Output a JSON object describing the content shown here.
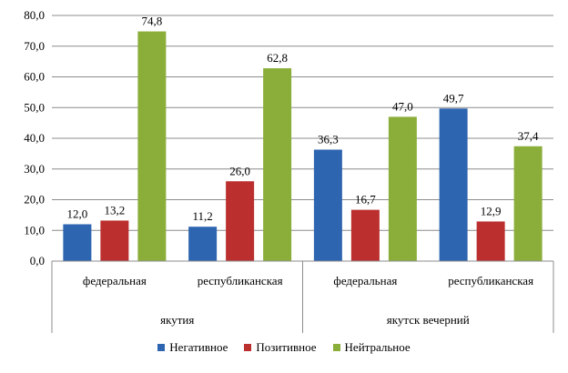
{
  "chart_data": {
    "type": "bar",
    "groups": [
      {
        "label": "якутия",
        "categories": [
          "федеральная",
          "республиканская"
        ]
      },
      {
        "label": "якутск вечерний",
        "categories": [
          "федеральная",
          "республиканская"
        ]
      }
    ],
    "categories": [
      "федеральная",
      "республиканская",
      "федеральная",
      "республиканская"
    ],
    "series": [
      {
        "name": "Негативное",
        "color": "#2e65b0",
        "values": [
          12.0,
          11.2,
          36.3,
          49.7
        ],
        "labels": [
          "12,0",
          "11,2",
          "36,3",
          "49,7"
        ]
      },
      {
        "name": "Позитивное",
        "color": "#bb2f2f",
        "values": [
          13.2,
          26.0,
          16.7,
          12.9
        ],
        "labels": [
          "13,2",
          "26,0",
          "16,7",
          "12,9"
        ]
      },
      {
        "name": "Нейтральное",
        "color": "#8bae3a",
        "values": [
          74.8,
          62.8,
          47.0,
          37.4
        ],
        "labels": [
          "74,8",
          "62,8",
          "47,0",
          "37,4"
        ]
      }
    ],
    "yticks": [
      "0,0",
      "10,0",
      "20,0",
      "30,0",
      "40,0",
      "50,0",
      "60,0",
      "70,0",
      "80,0"
    ],
    "ylim": [
      0,
      80
    ],
    "grid": true,
    "legend": "bottom"
  }
}
